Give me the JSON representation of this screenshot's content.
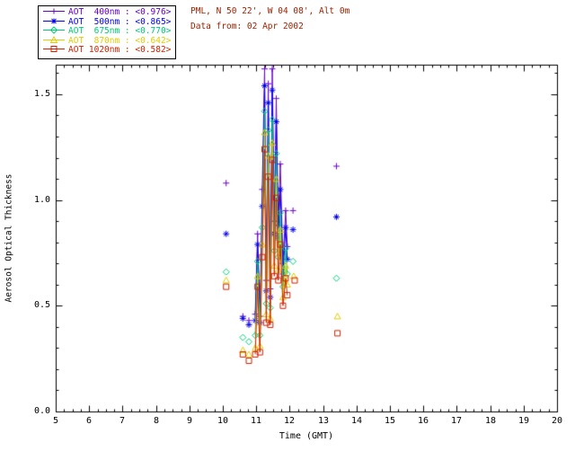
{
  "header": {
    "line1": "PML, N 50 22', W 04 08', Alt 0m",
    "line2": "Data from: 02 Apr 2002",
    "color": "#992200"
  },
  "chart_data": {
    "type": "line",
    "title": "",
    "xlabel": "Time (GMT)",
    "ylabel": "Aerosol Optical Thickness",
    "xlim": [
      5,
      20
    ],
    "ylim": [
      0,
      1.64
    ],
    "xticks": [
      5,
      6,
      7,
      8,
      9,
      10,
      11,
      12,
      13,
      14,
      15,
      16,
      17,
      18,
      19,
      20
    ],
    "yticks": [
      0.0,
      0.5,
      1.0,
      1.5
    ],
    "ytick_labels": [
      "0.0",
      "0.5",
      "1.0",
      "1.5"
    ],
    "x_minor_step": 0.25,
    "y_minor_step": 0.1,
    "grid": false,
    "legend_position": "top-left",
    "gap_threshold": 0.15,
    "axis_color": "#000000",
    "series": [
      {
        "name": "AOT 400nm",
        "legend_label": "AOT  400nm : <0.976>",
        "mean": "<0.976>",
        "color": "#6600cc",
        "marker": "plus",
        "points": [
          [
            10.1,
            1.08
          ],
          [
            10.6,
            0.45
          ],
          [
            10.78,
            0.43
          ],
          [
            10.97,
            0.46
          ],
          [
            11.04,
            0.84
          ],
          [
            11.11,
            0.45
          ],
          [
            11.18,
            1.05
          ],
          [
            11.25,
            1.62
          ],
          [
            11.3,
            0.62
          ],
          [
            11.36,
            1.55
          ],
          [
            11.42,
            0.58
          ],
          [
            11.48,
            1.62
          ],
          [
            11.54,
            0.9
          ],
          [
            11.6,
            1.48
          ],
          [
            11.66,
            0.88
          ],
          [
            11.72,
            1.17
          ],
          [
            11.8,
            0.7
          ],
          [
            11.88,
            0.95
          ],
          [
            11.93,
            0.78
          ],
          [
            12.1,
            0.95
          ],
          [
            13.4,
            1.16
          ]
        ]
      },
      {
        "name": "AOT 500nm",
        "legend_label": "AOT  500nm : <0.865>",
        "mean": "<0.865>",
        "color": "#0000ee",
        "marker": "asterisk",
        "points": [
          [
            10.1,
            0.84
          ],
          [
            10.6,
            0.44
          ],
          [
            10.78,
            0.41
          ],
          [
            10.97,
            0.43
          ],
          [
            11.04,
            0.79
          ],
          [
            11.11,
            0.42
          ],
          [
            11.18,
            0.97
          ],
          [
            11.25,
            1.54
          ],
          [
            11.3,
            0.57
          ],
          [
            11.36,
            1.46
          ],
          [
            11.42,
            0.54
          ],
          [
            11.48,
            1.52
          ],
          [
            11.54,
            0.84
          ],
          [
            11.6,
            1.37
          ],
          [
            11.66,
            0.82
          ],
          [
            11.72,
            1.05
          ],
          [
            11.8,
            0.65
          ],
          [
            11.88,
            0.87
          ],
          [
            11.93,
            0.72
          ],
          [
            12.1,
            0.86
          ],
          [
            13.4,
            0.92
          ]
        ]
      },
      {
        "name": "AOT 675nm",
        "legend_label": "AOT  675nm : <0.770>",
        "mean": "<0.770>",
        "color": "#00cc77",
        "marker": "diamond",
        "points": [
          [
            10.1,
            0.66
          ],
          [
            10.6,
            0.35
          ],
          [
            10.78,
            0.33
          ],
          [
            10.97,
            0.36
          ],
          [
            11.04,
            0.71
          ],
          [
            11.11,
            0.36
          ],
          [
            11.18,
            0.87
          ],
          [
            11.25,
            1.42
          ],
          [
            11.3,
            0.51
          ],
          [
            11.36,
            1.33
          ],
          [
            11.42,
            0.49
          ],
          [
            11.48,
            1.38
          ],
          [
            11.54,
            0.76
          ],
          [
            11.6,
            1.22
          ],
          [
            11.66,
            0.73
          ],
          [
            11.72,
            0.94
          ],
          [
            11.8,
            0.59
          ],
          [
            11.88,
            0.77
          ],
          [
            11.93,
            0.65
          ],
          [
            12.1,
            0.71
          ],
          [
            13.4,
            0.63
          ]
        ]
      },
      {
        "name": "AOT 870nm",
        "legend_label": "AOT  870nm : <0.642>",
        "mean": "<0.642>",
        "color": "#e3cc00",
        "marker": "triangle",
        "points": [
          [
            10.1,
            0.62
          ],
          [
            10.6,
            0.29
          ],
          [
            10.78,
            0.27
          ],
          [
            10.97,
            0.3
          ],
          [
            11.04,
            0.64
          ],
          [
            11.11,
            0.31
          ],
          [
            11.18,
            0.79
          ],
          [
            11.25,
            1.32
          ],
          [
            11.3,
            0.46
          ],
          [
            11.36,
            1.21
          ],
          [
            11.42,
            0.44
          ],
          [
            11.48,
            1.27
          ],
          [
            11.54,
            0.69
          ],
          [
            11.6,
            1.1
          ],
          [
            11.66,
            0.67
          ],
          [
            11.72,
            0.86
          ],
          [
            11.8,
            0.54
          ],
          [
            11.88,
            0.69
          ],
          [
            11.93,
            0.6
          ],
          [
            12.12,
            0.64
          ],
          [
            13.43,
            0.45
          ]
        ]
      },
      {
        "name": "AOT 1020nm",
        "legend_label": "AOT 1020nm : <0.582>",
        "mean": "<0.582>",
        "color": "#cc2200",
        "marker": "square",
        "points": [
          [
            10.1,
            0.59
          ],
          [
            10.6,
            0.27
          ],
          [
            10.78,
            0.24
          ],
          [
            10.97,
            0.27
          ],
          [
            11.04,
            0.59
          ],
          [
            11.11,
            0.28
          ],
          [
            11.18,
            0.73
          ],
          [
            11.25,
            1.24
          ],
          [
            11.3,
            0.42
          ],
          [
            11.36,
            1.11
          ],
          [
            11.42,
            0.41
          ],
          [
            11.48,
            1.19
          ],
          [
            11.54,
            0.64
          ],
          [
            11.6,
            1.01
          ],
          [
            11.66,
            0.62
          ],
          [
            11.72,
            0.79
          ],
          [
            11.8,
            0.5
          ],
          [
            11.88,
            0.63
          ],
          [
            11.93,
            0.55
          ],
          [
            12.15,
            0.62
          ],
          [
            13.43,
            0.37
          ]
        ]
      }
    ]
  }
}
